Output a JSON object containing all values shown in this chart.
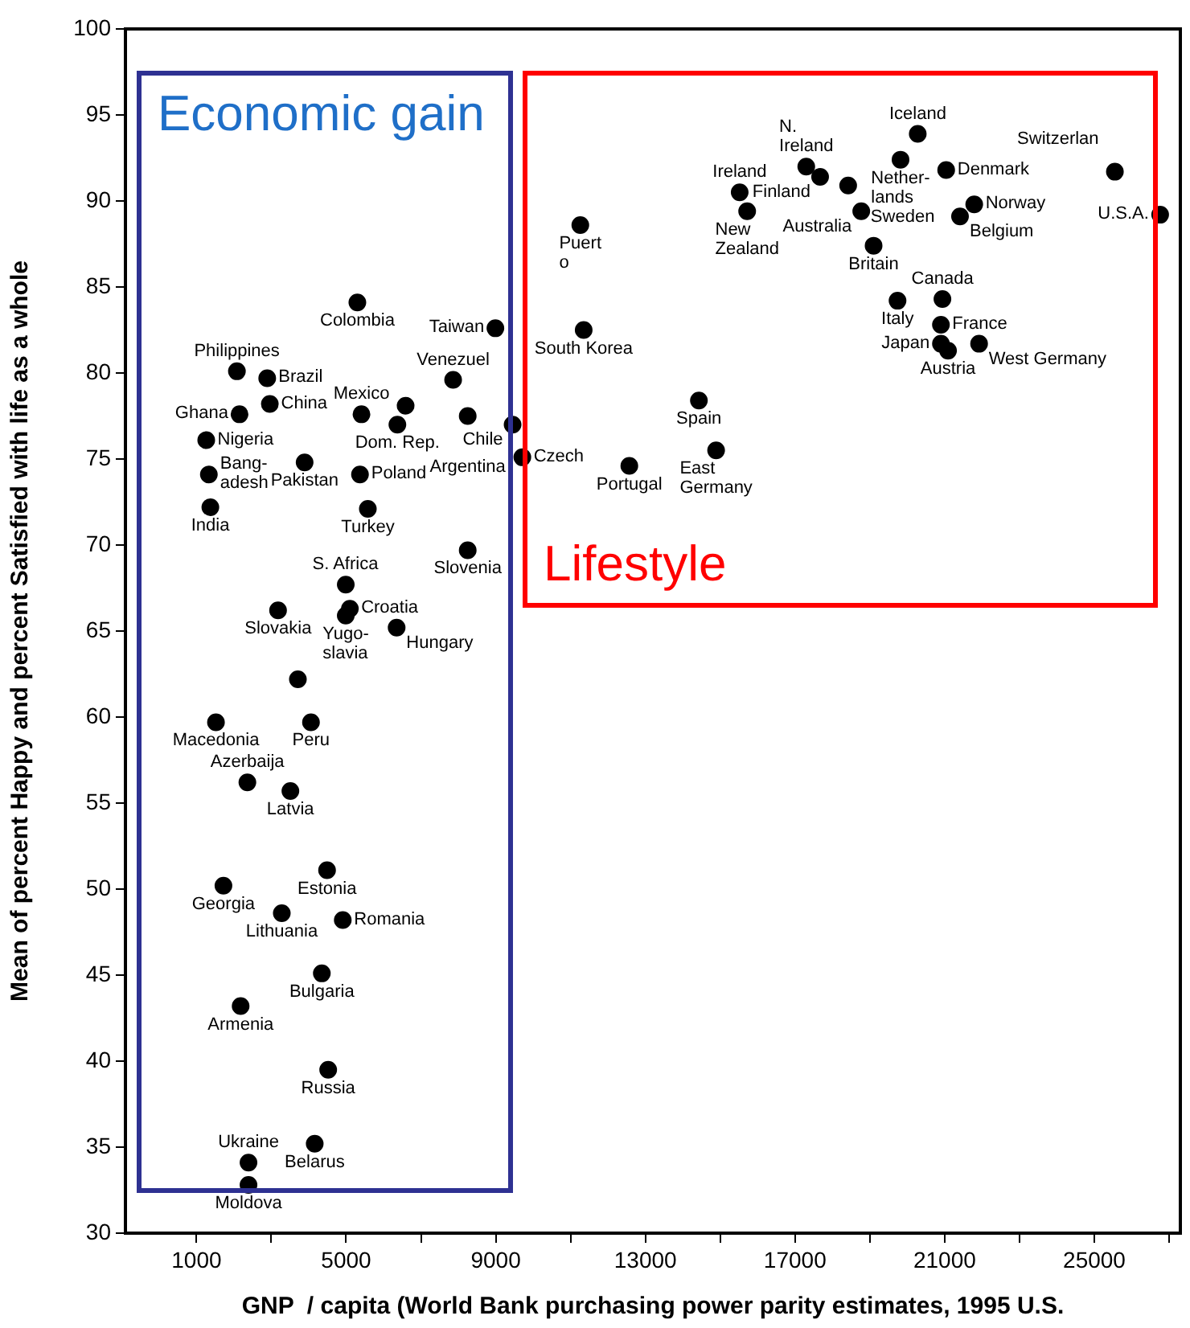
{
  "chart_data": {
    "type": "scatter",
    "color": "#000000",
    "marker": "circle",
    "xlabel": "GNP  / capita (World Bank purchasing power parity estimates, 1995 U.S.",
    "ylabel": "Mean of percent Happy and percent Satisfied with life as a whole",
    "xlim": [
      -900,
      27300
    ],
    "xticks": [
      1000,
      {
        "value": 3000,
        "label": null
      },
      5000,
      {
        "value": 7000,
        "label": null
      },
      9000,
      {
        "value": 11000,
        "label": null
      },
      13000,
      {
        "value": 15000,
        "label": null
      },
      17000,
      {
        "value": 19000,
        "label": null
      },
      21000,
      {
        "value": 23000,
        "label": null
      },
      25000,
      {
        "value": 27000,
        "label": null
      }
    ],
    "ylim": [
      30,
      100
    ],
    "yticks": [
      30,
      35,
      40,
      45,
      50,
      55,
      60,
      65,
      70,
      75,
      80,
      85,
      90,
      95,
      100
    ],
    "x": [
      5300,
      8990,
      2080,
      2890,
      2150,
      2960,
      1260,
      1330,
      1370,
      3890,
      5410,
      6590,
      6370,
      7860,
      8250,
      5370,
      5580,
      8250,
      4990,
      5100,
      4990,
      3180,
      6350,
      3710,
      4060,
      1520,
      2360,
      3510,
      4490,
      1720,
      3280,
      4910,
      4350,
      2180,
      4520,
      4160,
      2390,
      2390,
      11260,
      11350,
      9450,
      9710,
      14430,
      14890,
      12570,
      20280,
      19820,
      17300,
      17670,
      15520,
      15720,
      18420,
      21040,
      21790,
      21410,
      18770,
      19100,
      19740,
      20940,
      20900,
      20900,
      21090,
      21920,
      25550,
      26760
    ],
    "values": [
      84.1,
      82.6,
      80.1,
      79.7,
      77.6,
      78.2,
      76.1,
      74.1,
      72.2,
      74.8,
      77.6,
      78.1,
      77.0,
      79.6,
      77.5,
      74.1,
      72.1,
      69.7,
      67.7,
      66.3,
      65.9,
      66.2,
      65.2,
      62.2,
      59.7,
      59.7,
      56.2,
      55.7,
      51.1,
      50.2,
      48.6,
      48.2,
      45.1,
      43.2,
      39.5,
      35.2,
      34.1,
      32.8,
      88.6,
      82.5,
      77.0,
      75.1,
      78.4,
      75.5,
      74.6,
      93.9,
      92.4,
      92.0,
      91.4,
      90.5,
      89.4,
      90.9,
      91.8,
      89.8,
      89.1,
      89.4,
      87.4,
      84.2,
      84.3,
      82.8,
      81.7,
      81.3,
      81.7,
      91.7,
      89.2
    ],
    "annotations": [
      "Economic gain",
      "Lifestyle",
      {
        "text": "Colombia",
        "x": 5300,
        "y": 84.1
      },
      {
        "text": "Taiwan",
        "x": 8990,
        "y": 82.6
      },
      {
        "text": "Philippines",
        "x": 2080,
        "y": 80.1
      },
      {
        "text": "Brazil",
        "x": 2890,
        "y": 79.7
      },
      {
        "text": "Ghana",
        "x": 2150,
        "y": 77.6
      },
      {
        "text": "China",
        "x": 2960,
        "y": 78.2
      },
      {
        "text": "Nigeria",
        "x": 1260,
        "y": 76.1
      },
      {
        "text": "Bang-\nadesh",
        "x": 1330,
        "y": 74.1
      },
      {
        "text": "India",
        "x": 1370,
        "y": 72.2
      },
      {
        "text": "Pakistan",
        "x": 3890,
        "y": 74.8
      },
      {
        "text": "Mexico",
        "x": 5410,
        "y": 77.6
      },
      {
        "text": "Dom. Rep.",
        "x": 6370,
        "y": 77.0
      },
      {
        "text": "Venezuel",
        "x": 7860,
        "y": 79.6
      },
      {
        "text": "Argentina",
        "x": 8250,
        "y": 77.5
      },
      {
        "text": "Poland",
        "x": 5370,
        "y": 74.1
      },
      {
        "text": "Turkey",
        "x": 5580,
        "y": 72.1
      },
      {
        "text": "Slovenia",
        "x": 8250,
        "y": 69.7
      },
      {
        "text": "S. Africa",
        "x": 4990,
        "y": 67.7
      },
      {
        "text": "Croatia",
        "x": 5100,
        "y": 66.3
      },
      {
        "text": "Yugo-\nslavia",
        "x": 4990,
        "y": 65.9
      },
      {
        "text": "Slovakia",
        "x": 3180,
        "y": 66.2
      },
      {
        "text": "Hungary",
        "x": 6350,
        "y": 65.2
      },
      {
        "text": "Peru",
        "x": 4060,
        "y": 59.7
      },
      {
        "text": "Macedonia",
        "x": 1520,
        "y": 59.7
      },
      {
        "text": "Azerbaija",
        "x": 2360,
        "y": 56.2
      },
      {
        "text": "Latvia",
        "x": 3510,
        "y": 55.7
      },
      {
        "text": "Estonia",
        "x": 4490,
        "y": 51.1
      },
      {
        "text": "Georgia",
        "x": 1720,
        "y": 50.2
      },
      {
        "text": "Lithuania",
        "x": 3280,
        "y": 48.6
      },
      {
        "text": "Romania",
        "x": 4910,
        "y": 48.2
      },
      {
        "text": "Bulgaria",
        "x": 4350,
        "y": 45.1
      },
      {
        "text": "Armenia",
        "x": 2180,
        "y": 43.2
      },
      {
        "text": "Russia",
        "x": 4520,
        "y": 39.5
      },
      {
        "text": "Belarus",
        "x": 4160,
        "y": 35.2
      },
      {
        "text": "Ukraine",
        "x": 2390,
        "y": 34.1
      },
      {
        "text": "Moldova",
        "x": 2390,
        "y": 32.8
      },
      {
        "text": "Puert\no",
        "x": 11260,
        "y": 88.6
      },
      {
        "text": "South Korea",
        "x": 11350,
        "y": 82.5
      },
      {
        "text": "Chile",
        "x": 9450,
        "y": 77.0
      },
      {
        "text": "Czech",
        "x": 9710,
        "y": 75.1
      },
      {
        "text": "Spain",
        "x": 14430,
        "y": 78.4
      },
      {
        "text": "East\nGermany",
        "x": 14890,
        "y": 75.5
      },
      {
        "text": "Portugal",
        "x": 12570,
        "y": 74.6
      },
      {
        "text": "Iceland",
        "x": 20280,
        "y": 93.9
      },
      {
        "text": "Nether-\nlands",
        "x": 19820,
        "y": 92.4
      },
      {
        "text": "N.\nIreland",
        "x": 17300,
        "y": 92.0
      },
      {
        "text": "Finland",
        "x": 17670,
        "y": 91.4
      },
      {
        "text": "Ireland",
        "x": 15520,
        "y": 90.5
      },
      {
        "text": "New\nZealand",
        "x": 15720,
        "y": 89.4
      },
      {
        "text": "Sweden",
        "x": 18420,
        "y": 90.9
      },
      {
        "text": "Denmark",
        "x": 21040,
        "y": 91.8
      },
      {
        "text": "Norway",
        "x": 21790,
        "y": 89.8
      },
      {
        "text": "Belgium",
        "x": 21410,
        "y": 89.1
      },
      {
        "text": "Australia",
        "x": 18770,
        "y": 89.4
      },
      {
        "text": "Britain",
        "x": 19100,
        "y": 87.4
      },
      {
        "text": "Italy",
        "x": 19740,
        "y": 84.2
      },
      {
        "text": "Canada",
        "x": 20940,
        "y": 84.3
      },
      {
        "text": "France",
        "x": 20900,
        "y": 82.8
      },
      {
        "text": "Japan",
        "x": 20900,
        "y": 81.7
      },
      {
        "text": "Austria",
        "x": 21090,
        "y": 81.3
      },
      {
        "text": "West Germany",
        "x": 21920,
        "y": 81.7
      },
      {
        "text": "Switzerlan",
        "x": 25550,
        "y": 91.7
      },
      {
        "text": "U.S.A.",
        "x": 26760,
        "y": 89.2
      }
    ]
  }
}
